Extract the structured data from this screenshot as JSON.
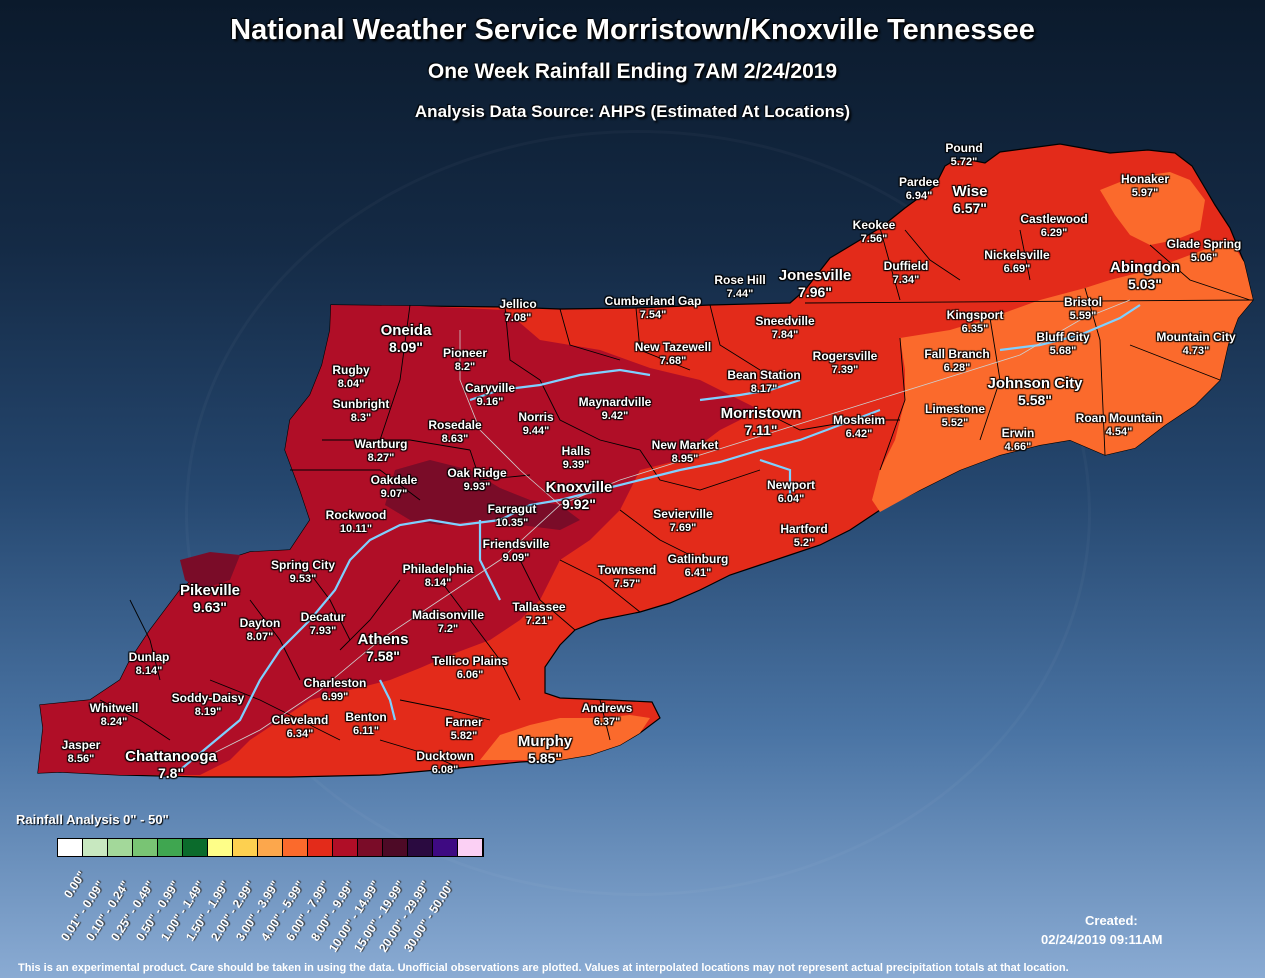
{
  "header": {
    "title": "National Weather Service Morristown/Knoxville Tennessee",
    "subtitle": "One Week Rainfall Ending 7AM 2/24/2019",
    "source": "Analysis Data Source: AHPS (Estimated At Locations)"
  },
  "stations": [
    {
      "name": "Pound",
      "value": "5.72\"",
      "pos": "964,142",
      "big": false
    },
    {
      "name": "Pardee",
      "value": "6.94\"",
      "pos": "919,176",
      "big": false
    },
    {
      "name": "Wise",
      "value": "6.57\"",
      "pos": "970,183",
      "big": true
    },
    {
      "name": "Honaker",
      "value": "5.97\"",
      "pos": "1145,173",
      "big": false
    },
    {
      "name": "Keokee",
      "value": "7.56\"",
      "pos": "874,219",
      "big": false
    },
    {
      "name": "Castlewood",
      "value": "6.29\"",
      "pos": "1054,213",
      "big": false
    },
    {
      "name": "Glade Spring",
      "value": "5.06\"",
      "pos": "1204,238",
      "big": false
    },
    {
      "name": "Duffield",
      "value": "7.34\"",
      "pos": "906,260",
      "big": false
    },
    {
      "name": "Nickelsville",
      "value": "6.69\"",
      "pos": "1017,249",
      "big": false
    },
    {
      "name": "Abingdon",
      "value": "5.03\"",
      "pos": "1145,259",
      "big": true
    },
    {
      "name": "Rose Hill",
      "value": "7.44\"",
      "pos": "740,274",
      "big": false
    },
    {
      "name": "Jonesville",
      "value": "7.96\"",
      "pos": "815,267",
      "big": true
    },
    {
      "name": "Jellico",
      "value": "7.08\"",
      "pos": "518,298",
      "big": false
    },
    {
      "name": "Cumberland Gap",
      "value": "7.54\"",
      "pos": "653,295",
      "big": false
    },
    {
      "name": "Bristol",
      "value": "5.59\"",
      "pos": "1083,296",
      "big": false
    },
    {
      "name": "Kingsport",
      "value": "6.35\"",
      "pos": "975,309",
      "big": false
    },
    {
      "name": "Sneedville",
      "value": "7.84\"",
      "pos": "785,315",
      "big": false
    },
    {
      "name": "Oneida",
      "value": "8.09\"",
      "pos": "406,322",
      "big": true
    },
    {
      "name": "Bluff City",
      "value": "5.68\"",
      "pos": "1063,331",
      "big": false
    },
    {
      "name": "Mountain City",
      "value": "4.73\"",
      "pos": "1196,331",
      "big": false
    },
    {
      "name": "New Tazewell",
      "value": "7.68\"",
      "pos": "673,341",
      "big": false
    },
    {
      "name": "Pioneer",
      "value": "8.2\"",
      "pos": "465,347",
      "big": false
    },
    {
      "name": "Fall Branch",
      "value": "6.28\"",
      "pos": "957,348",
      "big": false
    },
    {
      "name": "Rogersville",
      "value": "7.39\"",
      "pos": "845,350",
      "big": false
    },
    {
      "name": "Rugby",
      "value": "8.04\"",
      "pos": "351,364",
      "big": false
    },
    {
      "name": "Bean Station",
      "value": "8.17\"",
      "pos": "764,369",
      "big": false
    },
    {
      "name": "Johnson City",
      "value": "5.58\"",
      "pos": "1035,375",
      "big": true
    },
    {
      "name": "Caryville",
      "value": "9.16\"",
      "pos": "490,382",
      "big": false
    },
    {
      "name": "Maynardville",
      "value": "9.42\"",
      "pos": "615,396",
      "big": false
    },
    {
      "name": "Sunbright",
      "value": "8.3\"",
      "pos": "361,398",
      "big": false
    },
    {
      "name": "Limestone",
      "value": "5.52\"",
      "pos": "955,403",
      "big": false
    },
    {
      "name": "Morristown",
      "value": "7.11\"",
      "pos": "761,405",
      "big": true
    },
    {
      "name": "Norris",
      "value": "9.44\"",
      "pos": "536,411",
      "big": false
    },
    {
      "name": "Roan Mountain",
      "value": "4.54\"",
      "pos": "1119,412",
      "big": false
    },
    {
      "name": "Mosheim",
      "value": "6.42\"",
      "pos": "859,414",
      "big": false
    },
    {
      "name": "Rosedale",
      "value": "8.63\"",
      "pos": "455,419",
      "big": false
    },
    {
      "name": "Erwin",
      "value": "4.66\"",
      "pos": "1018,427",
      "big": false
    },
    {
      "name": "Wartburg",
      "value": "8.27\"",
      "pos": "381,438",
      "big": false
    },
    {
      "name": "New Market",
      "value": "8.95\"",
      "pos": "685,439",
      "big": false
    },
    {
      "name": "Halls",
      "value": "9.39\"",
      "pos": "576,445",
      "big": false
    },
    {
      "name": "Oak Ridge",
      "value": "9.93\"",
      "pos": "477,467",
      "big": false
    },
    {
      "name": "Oakdale",
      "value": "9.07\"",
      "pos": "394,474",
      "big": false
    },
    {
      "name": "Knoxville",
      "value": "9.92\"",
      "pos": "579,479",
      "big": true
    },
    {
      "name": "Newport",
      "value": "6.04\"",
      "pos": "791,479",
      "big": false
    },
    {
      "name": "Farragut",
      "value": "10.35\"",
      "pos": "512,503",
      "big": false
    },
    {
      "name": "Rockwood",
      "value": "10.11\"",
      "pos": "356,509",
      "big": false
    },
    {
      "name": "Sevierville",
      "value": "7.69\"",
      "pos": "683,508",
      "big": false
    },
    {
      "name": "Hartford",
      "value": "5.2\"",
      "pos": "804,523",
      "big": false
    },
    {
      "name": "Friendsville",
      "value": "9.09\"",
      "pos": "516,538",
      "big": false
    },
    {
      "name": "Gatlinburg",
      "value": "6.41\"",
      "pos": "698,553",
      "big": false
    },
    {
      "name": "Spring City",
      "value": "9.53\"",
      "pos": "303,559",
      "big": false
    },
    {
      "name": "Philadelphia",
      "value": "8.14\"",
      "pos": "438,563",
      "big": false
    },
    {
      "name": "Townsend",
      "value": "7.57\"",
      "pos": "627,564",
      "big": false
    },
    {
      "name": "Pikeville",
      "value": "9.63\"",
      "pos": "210,582",
      "big": true
    },
    {
      "name": "Tallassee",
      "value": "7.21\"",
      "pos": "539,601",
      "big": false
    },
    {
      "name": "Madisonville",
      "value": "7.2\"",
      "pos": "448,609",
      "big": false
    },
    {
      "name": "Decatur",
      "value": "7.93\"",
      "pos": "323,611",
      "big": false
    },
    {
      "name": "Dayton",
      "value": "8.07\"",
      "pos": "260,617",
      "big": false
    },
    {
      "name": "Athens",
      "value": "7.58\"",
      "pos": "383,631",
      "big": true
    },
    {
      "name": "Dunlap",
      "value": "8.14\"",
      "pos": "149,651",
      "big": false
    },
    {
      "name": "Tellico Plains",
      "value": "6.06\"",
      "pos": "470,655",
      "big": false
    },
    {
      "name": "Charleston",
      "value": "6.99\"",
      "pos": "335,677",
      "big": false
    },
    {
      "name": "Soddy-Daisy",
      "value": "8.19\"",
      "pos": "208,692",
      "big": false
    },
    {
      "name": "Whitwell",
      "value": "8.24\"",
      "pos": "114,702",
      "big": false
    },
    {
      "name": "Andrews",
      "value": "6.37\"",
      "pos": "607,702",
      "big": false
    },
    {
      "name": "Benton",
      "value": "6.11\"",
      "pos": "366,711",
      "big": false
    },
    {
      "name": "Cleveland",
      "value": "6.34\"",
      "pos": "300,714",
      "big": false
    },
    {
      "name": "Farner",
      "value": "5.82\"",
      "pos": "464,716",
      "big": false
    },
    {
      "name": "Murphy",
      "value": "5.85\"",
      "pos": "545,733",
      "big": true
    },
    {
      "name": "Jasper",
      "value": "8.56\"",
      "pos": "81,739",
      "big": false
    },
    {
      "name": "Chattanooga",
      "value": "7.8\"",
      "pos": "171,748",
      "big": true
    },
    {
      "name": "Ducktown",
      "value": "6.08\"",
      "pos": "445,750",
      "big": false
    }
  ],
  "legend": {
    "title": "Rainfall Analysis 0\" - 50\"",
    "bins": [
      {
        "range": "0.00\"",
        "color": "#ffffff"
      },
      {
        "range": "0.01\" - 0.09\"",
        "color": "#c8e8c0"
      },
      {
        "range": "0.10\" - 0.24\"",
        "color": "#a3d89a"
      },
      {
        "range": "0.25\" - 0.49\"",
        "color": "#79c474"
      },
      {
        "range": "0.50\" - 0.99\"",
        "color": "#3fa650"
      },
      {
        "range": "1.00\" - 1.49\"",
        "color": "#0b6b2c"
      },
      {
        "range": "1.50\" - 1.99\"",
        "color": "#fefe88"
      },
      {
        "range": "2.00\" - 2.99\"",
        "color": "#fdd050"
      },
      {
        "range": "3.00\" - 3.99\"",
        "color": "#fca74c"
      },
      {
        "range": "4.00\" - 5.99\"",
        "color": "#fb6a2c"
      },
      {
        "range": "6.00\" - 7.99\"",
        "color": "#e32b1a"
      },
      {
        "range": "8.00\" - 9.99\"",
        "color": "#b00e27"
      },
      {
        "range": "10.00\" - 14.99\"",
        "color": "#7a0c28"
      },
      {
        "range": "15.00\" - 19.99\"",
        "color": "#4d0a26"
      },
      {
        "range": "20.00\" - 29.99\"",
        "color": "#2a0a40"
      },
      {
        "range": "30.00\" - 50.00\"",
        "color": "#3e0a82"
      },
      {
        "range": "",
        "color": "#fbd0f4"
      }
    ]
  },
  "footer": {
    "created_label": "Created:",
    "created_time": "02/24/2019 09:11AM",
    "disclaimer": "This is an experimental product. Care should be taken in using the data. Unofficial observations are plotted. Values at interpolated locations may not represent actual precipitation totals at that location."
  },
  "colors": {
    "bin_4_6": "#fb6a2c",
    "bin_6_8": "#e32b1a",
    "bin_8_10": "#b00e27",
    "bin_10_15": "#7a0c28",
    "water": "#7fd0ff"
  }
}
